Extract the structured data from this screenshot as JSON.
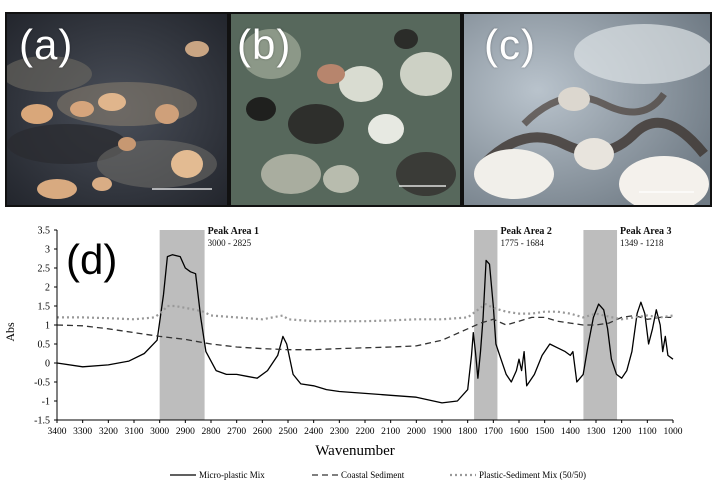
{
  "panels": [
    {
      "label": "(a)"
    },
    {
      "label": "(b)"
    },
    {
      "label": "(c)"
    }
  ],
  "chart_label": "(d)",
  "chart_data": {
    "type": "line",
    "title": "",
    "xlabel": "Wavenumber",
    "ylabel": "Abs",
    "xlim": [
      3400,
      1000
    ],
    "ylim": [
      -1.5,
      3.5
    ],
    "x_reversed": true,
    "xticks": [
      3400,
      3300,
      3200,
      3100,
      3000,
      2900,
      2800,
      2700,
      2600,
      2500,
      2400,
      2300,
      2200,
      2100,
      2000,
      1900,
      1800,
      1700,
      1600,
      1500,
      1400,
      1300,
      1200,
      1100,
      1000
    ],
    "xtick_labels": [
      "3400",
      "3300",
      "3200",
      "3100",
      "3000",
      "2900",
      "2800",
      "2700",
      "2600",
      "2500",
      "2400",
      "2300",
      "2200",
      "2100",
      "2000",
      "1900",
      "1800",
      "1700",
      "1600",
      "1500",
      "1400",
      "1300",
      "1200",
      "1100",
      "1000"
    ],
    "yticks": [
      -1.5,
      -1,
      -0.5,
      0,
      0.5,
      1,
      1.5,
      2,
      2.5,
      3,
      3.5
    ],
    "ytick_labels": [
      "-1.5",
      "-1",
      "-0.5",
      "0",
      "0.5",
      "1",
      "1.5",
      "2",
      "2.5",
      "3",
      "3.5"
    ],
    "grid": false,
    "legend_position": "bottom",
    "peak_areas": [
      {
        "title": "Peak Area 1",
        "range_label": "3000 - 2825",
        "from": 3000,
        "to": 2825
      },
      {
        "title": "Peak Area 2",
        "range_label": "1775 - 1684",
        "from": 1775,
        "to": 1684
      },
      {
        "title": "Peak Area 3",
        "range_label": "1349 - 1218",
        "from": 1349,
        "to": 1218
      }
    ],
    "series": [
      {
        "name": "Micro-plastic Mix",
        "style": "solid",
        "color": "#000000",
        "points": [
          [
            3400,
            0
          ],
          [
            3300,
            -0.1
          ],
          [
            3200,
            -0.05
          ],
          [
            3120,
            0.05
          ],
          [
            3060,
            0.25
          ],
          [
            3010,
            0.6
          ],
          [
            2985,
            1.8
          ],
          [
            2970,
            2.8
          ],
          [
            2950,
            2.85
          ],
          [
            2920,
            2.8
          ],
          [
            2900,
            2.5
          ],
          [
            2880,
            2.4
          ],
          [
            2860,
            2.35
          ],
          [
            2840,
            1.2
          ],
          [
            2820,
            0.3
          ],
          [
            2780,
            -0.2
          ],
          [
            2740,
            -0.3
          ],
          [
            2700,
            -0.3
          ],
          [
            2660,
            -0.35
          ],
          [
            2620,
            -0.4
          ],
          [
            2580,
            -0.2
          ],
          [
            2540,
            0.2
          ],
          [
            2520,
            0.7
          ],
          [
            2505,
            0.5
          ],
          [
            2480,
            -0.3
          ],
          [
            2450,
            -0.55
          ],
          [
            2400,
            -0.6
          ],
          [
            2350,
            -0.7
          ],
          [
            2300,
            -0.75
          ],
          [
            2200,
            -0.8
          ],
          [
            2100,
            -0.85
          ],
          [
            2000,
            -0.9
          ],
          [
            1900,
            -1.05
          ],
          [
            1840,
            -1.0
          ],
          [
            1800,
            -0.7
          ],
          [
            1785,
            0.2
          ],
          [
            1778,
            0.8
          ],
          [
            1770,
            0.3
          ],
          [
            1760,
            -0.4
          ],
          [
            1750,
            0.3
          ],
          [
            1740,
            1.2
          ],
          [
            1728,
            2.7
          ],
          [
            1715,
            2.6
          ],
          [
            1700,
            1.5
          ],
          [
            1690,
            0.5
          ],
          [
            1670,
            0.1
          ],
          [
            1650,
            -0.3
          ],
          [
            1630,
            -0.5
          ],
          [
            1610,
            -0.2
          ],
          [
            1600,
            0.1
          ],
          [
            1590,
            -0.2
          ],
          [
            1580,
            0.3
          ],
          [
            1570,
            -0.6
          ],
          [
            1540,
            -0.3
          ],
          [
            1510,
            0.2
          ],
          [
            1480,
            0.5
          ],
          [
            1450,
            0.4
          ],
          [
            1420,
            0.3
          ],
          [
            1400,
            0.2
          ],
          [
            1390,
            0.3
          ],
          [
            1375,
            -0.5
          ],
          [
            1350,
            -0.3
          ],
          [
            1330,
            0.5
          ],
          [
            1310,
            1.2
          ],
          [
            1290,
            1.55
          ],
          [
            1270,
            1.4
          ],
          [
            1255,
            0.9
          ],
          [
            1240,
            0.1
          ],
          [
            1220,
            -0.3
          ],
          [
            1200,
            -0.4
          ],
          [
            1180,
            -0.2
          ],
          [
            1160,
            0.3
          ],
          [
            1140,
            1.3
          ],
          [
            1125,
            1.6
          ],
          [
            1110,
            1.3
          ],
          [
            1095,
            0.5
          ],
          [
            1080,
            0.9
          ],
          [
            1065,
            1.4
          ],
          [
            1050,
            1.0
          ],
          [
            1040,
            0.3
          ],
          [
            1030,
            0.7
          ],
          [
            1020,
            0.2
          ],
          [
            1000,
            0.1
          ]
        ]
      },
      {
        "name": "Coastal Sediment",
        "style": "dashed",
        "color": "#333333",
        "points": [
          [
            3400,
            1.0
          ],
          [
            3300,
            0.98
          ],
          [
            3200,
            0.9
          ],
          [
            3100,
            0.8
          ],
          [
            3000,
            0.7
          ],
          [
            2900,
            0.62
          ],
          [
            2800,
            0.5
          ],
          [
            2700,
            0.42
          ],
          [
            2600,
            0.38
          ],
          [
            2500,
            0.35
          ],
          [
            2400,
            0.35
          ],
          [
            2300,
            0.38
          ],
          [
            2200,
            0.4
          ],
          [
            2100,
            0.42
          ],
          [
            2000,
            0.45
          ],
          [
            1900,
            0.6
          ],
          [
            1800,
            0.9
          ],
          [
            1750,
            1.05
          ],
          [
            1700,
            1.15
          ],
          [
            1650,
            1.0
          ],
          [
            1600,
            1.1
          ],
          [
            1550,
            1.2
          ],
          [
            1500,
            1.2
          ],
          [
            1450,
            1.1
          ],
          [
            1400,
            1.05
          ],
          [
            1350,
            1.0
          ],
          [
            1300,
            1.0
          ],
          [
            1250,
            1.05
          ],
          [
            1200,
            1.2
          ],
          [
            1150,
            1.25
          ],
          [
            1100,
            1.15
          ],
          [
            1050,
            1.2
          ],
          [
            1000,
            1.2
          ]
        ]
      },
      {
        "name": "Plastic-Sediment Mix (50/50)",
        "style": "dotted",
        "color": "#999999",
        "points": [
          [
            3400,
            1.2
          ],
          [
            3300,
            1.2
          ],
          [
            3200,
            1.18
          ],
          [
            3100,
            1.15
          ],
          [
            3020,
            1.2
          ],
          [
            2990,
            1.35
          ],
          [
            2970,
            1.5
          ],
          [
            2940,
            1.5
          ],
          [
            2900,
            1.45
          ],
          [
            2860,
            1.4
          ],
          [
            2830,
            1.35
          ],
          [
            2800,
            1.25
          ],
          [
            2700,
            1.2
          ],
          [
            2600,
            1.15
          ],
          [
            2520,
            1.25
          ],
          [
            2500,
            1.15
          ],
          [
            2400,
            1.1
          ],
          [
            2300,
            1.1
          ],
          [
            2200,
            1.1
          ],
          [
            2100,
            1.12
          ],
          [
            2000,
            1.15
          ],
          [
            1900,
            1.15
          ],
          [
            1800,
            1.2
          ],
          [
            1760,
            1.4
          ],
          [
            1730,
            1.55
          ],
          [
            1700,
            1.45
          ],
          [
            1650,
            1.35
          ],
          [
            1600,
            1.3
          ],
          [
            1550,
            1.3
          ],
          [
            1500,
            1.35
          ],
          [
            1450,
            1.35
          ],
          [
            1400,
            1.3
          ],
          [
            1350,
            1.2
          ],
          [
            1300,
            1.3
          ],
          [
            1270,
            1.25
          ],
          [
            1200,
            1.15
          ],
          [
            1150,
            1.2
          ],
          [
            1100,
            1.25
          ],
          [
            1050,
            1.2
          ],
          [
            1000,
            1.25
          ]
        ]
      }
    ]
  }
}
